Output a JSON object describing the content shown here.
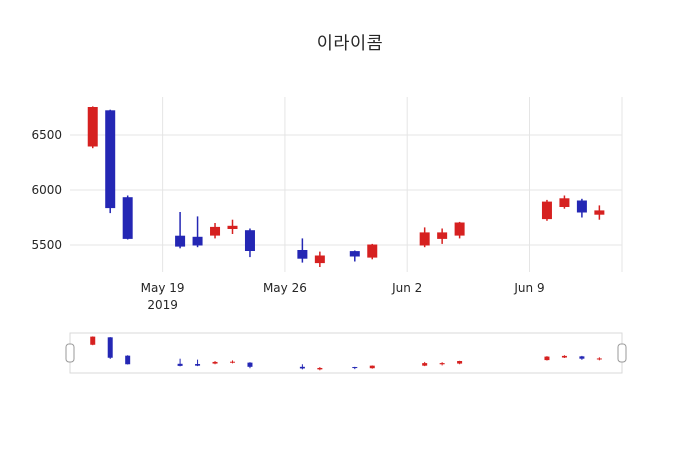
{
  "chart_data": {
    "type": "candlestick",
    "title": "이라이콤",
    "xlabel": "",
    "ylabel": "",
    "ylim": [
      5270,
      6820
    ],
    "grid": true,
    "range_slider": true,
    "colors": {
      "increasing": "#d62120",
      "decreasing": "#2427b4",
      "grid": "#e5e5e5",
      "text": "#262626",
      "slider_border": "#d9d9d9",
      "handle_border": "#999999",
      "background": "#ffffff"
    },
    "y_ticks": [
      {
        "value": 6500,
        "label": "6500"
      },
      {
        "value": 6000,
        "label": "6000"
      },
      {
        "value": 5500,
        "label": "5500"
      }
    ],
    "x_ticks": [
      {
        "date": "2019-05-19",
        "label": "May 19",
        "sublabel": "2019"
      },
      {
        "date": "2019-05-26",
        "label": "May 26",
        "sublabel": ""
      },
      {
        "date": "2019-06-02",
        "label": "Jun 2",
        "sublabel": ""
      },
      {
        "date": "2019-06-09",
        "label": "Jun 9",
        "sublabel": ""
      }
    ],
    "candles": [
      {
        "date": "2019-05-15",
        "open": 6400,
        "high": 6760,
        "low": 6380,
        "close": 6750
      },
      {
        "date": "2019-05-16",
        "open": 6720,
        "high": 6730,
        "low": 5790,
        "close": 5840
      },
      {
        "date": "2019-05-17",
        "open": 5930,
        "high": 5950,
        "low": 5550,
        "close": 5560
      },
      {
        "date": "2019-05-20",
        "open": 5580,
        "high": 5800,
        "low": 5470,
        "close": 5490
      },
      {
        "date": "2019-05-21",
        "open": 5570,
        "high": 5760,
        "low": 5480,
        "close": 5500
      },
      {
        "date": "2019-05-22",
        "open": 5590,
        "high": 5700,
        "low": 5560,
        "close": 5660
      },
      {
        "date": "2019-05-23",
        "open": 5650,
        "high": 5730,
        "low": 5600,
        "close": 5670
      },
      {
        "date": "2019-05-24",
        "open": 5630,
        "high": 5650,
        "low": 5390,
        "close": 5450
      },
      {
        "date": "2019-05-27",
        "open": 5450,
        "high": 5560,
        "low": 5340,
        "close": 5380
      },
      {
        "date": "2019-05-28",
        "open": 5340,
        "high": 5440,
        "low": 5300,
        "close": 5400
      },
      {
        "date": "2019-05-30",
        "open": 5440,
        "high": 5450,
        "low": 5350,
        "close": 5400
      },
      {
        "date": "2019-05-31",
        "open": 5390,
        "high": 5510,
        "low": 5370,
        "close": 5500
      },
      {
        "date": "2019-06-03",
        "open": 5500,
        "high": 5660,
        "low": 5480,
        "close": 5610
      },
      {
        "date": "2019-06-04",
        "open": 5560,
        "high": 5650,
        "low": 5510,
        "close": 5610
      },
      {
        "date": "2019-06-05",
        "open": 5590,
        "high": 5710,
        "low": 5560,
        "close": 5700
      },
      {
        "date": "2019-06-10",
        "open": 5740,
        "high": 5910,
        "low": 5720,
        "close": 5890
      },
      {
        "date": "2019-06-11",
        "open": 5850,
        "high": 5950,
        "low": 5830,
        "close": 5920
      },
      {
        "date": "2019-06-12",
        "open": 5900,
        "high": 5920,
        "low": 5750,
        "close": 5800
      },
      {
        "date": "2019-06-13",
        "open": 5780,
        "high": 5860,
        "low": 5730,
        "close": 5810
      }
    ]
  }
}
